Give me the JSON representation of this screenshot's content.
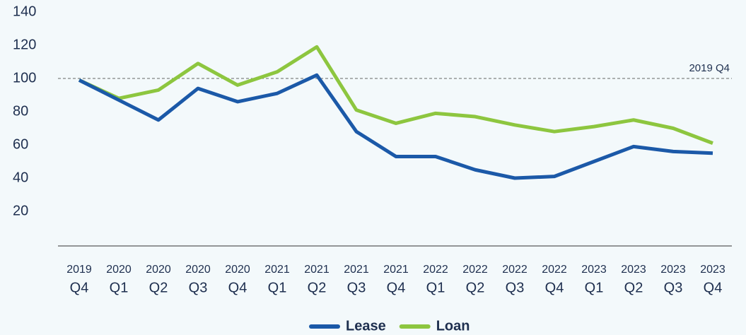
{
  "chart_data": {
    "type": "line",
    "categories": [
      [
        "2019",
        "Q4"
      ],
      [
        "2020",
        "Q1"
      ],
      [
        "2020",
        "Q2"
      ],
      [
        "2020",
        "Q3"
      ],
      [
        "2020",
        "Q4"
      ],
      [
        "2021",
        "Q1"
      ],
      [
        "2021",
        "Q2"
      ],
      [
        "2021",
        "Q3"
      ],
      [
        "2021",
        "Q4"
      ],
      [
        "2022",
        "Q1"
      ],
      [
        "2022",
        "Q2"
      ],
      [
        "2022",
        "Q3"
      ],
      [
        "2022",
        "Q4"
      ],
      [
        "2023",
        "Q1"
      ],
      [
        "2023",
        "Q2"
      ],
      [
        "2023",
        "Q3"
      ],
      [
        "2023",
        "Q4"
      ]
    ],
    "series": [
      {
        "name": "Lease",
        "color": "#1b59a8",
        "values": [
          99,
          87,
          75,
          94,
          86,
          91,
          102,
          68,
          53,
          53,
          45,
          40,
          41,
          50,
          59,
          56,
          55
        ]
      },
      {
        "name": "Loan",
        "color": "#8dc63f",
        "values": [
          99,
          88,
          93,
          109,
          96,
          104,
          119,
          81,
          73,
          79,
          77,
          72,
          68,
          71,
          75,
          70,
          61
        ]
      }
    ],
    "ylim": [
      0,
      140
    ],
    "yticks": [
      20,
      40,
      60,
      80,
      100,
      120,
      140
    ],
    "reference_line": {
      "value": 100,
      "label": "2019 Q4"
    },
    "legend": "bottom"
  }
}
